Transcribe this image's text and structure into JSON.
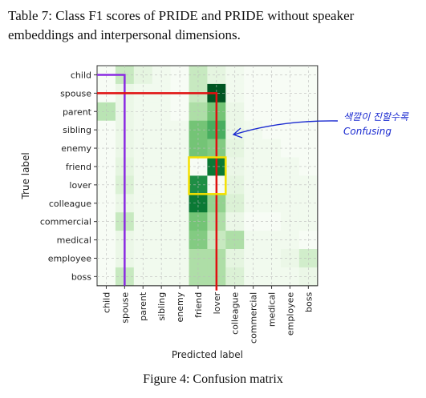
{
  "table_caption": "Table 7: Class F1 scores of PRIDE and PRIDE without speaker embeddings and interpersonal dimensions.",
  "figure_caption": "Figure 4: Confusion matrix",
  "chart_data": {
    "type": "heatmap",
    "colormap": "Greens",
    "xlabel": "Predicted label",
    "ylabel": "True label",
    "grid": true,
    "labels": [
      "child",
      "spouse",
      "parent",
      "sibling",
      "enemy",
      "friend",
      "lover",
      "colleague",
      "commercial",
      "medical",
      "employee",
      "boss"
    ],
    "values": [
      [
        0.0,
        0.3,
        0.15,
        0.05,
        0.0,
        0.3,
        0.15,
        0.05,
        0.0,
        0.0,
        0.0,
        0.0
      ],
      [
        0.0,
        0.1,
        0.05,
        0.05,
        0.0,
        0.3,
        0.95,
        0.05,
        0.0,
        0.0,
        0.0,
        0.0
      ],
      [
        0.35,
        0.1,
        0.05,
        0.05,
        0.0,
        0.4,
        0.6,
        0.1,
        0.0,
        0.0,
        0.0,
        0.0
      ],
      [
        0.0,
        0.1,
        0.05,
        0.05,
        0.05,
        0.6,
        0.7,
        0.1,
        0.05,
        0.0,
        0.0,
        0.0
      ],
      [
        0.0,
        0.1,
        0.05,
        0.05,
        0.05,
        0.6,
        0.55,
        0.15,
        0.05,
        0.05,
        0.0,
        0.0
      ],
      [
        0.0,
        0.15,
        0.05,
        0.05,
        0.05,
        0.0,
        0.85,
        0.1,
        0.05,
        0.05,
        0.05,
        0.0
      ],
      [
        0.0,
        0.2,
        0.05,
        0.05,
        0.05,
        0.8,
        0.0,
        0.15,
        0.05,
        0.05,
        0.05,
        0.05
      ],
      [
        0.0,
        0.1,
        0.05,
        0.05,
        0.05,
        0.85,
        0.5,
        0.2,
        0.05,
        0.05,
        0.05,
        0.05
      ],
      [
        0.0,
        0.3,
        0.05,
        0.05,
        0.05,
        0.6,
        0.4,
        0.1,
        0.0,
        0.0,
        0.05,
        0.05
      ],
      [
        0.0,
        0.1,
        0.05,
        0.05,
        0.05,
        0.55,
        0.3,
        0.4,
        0.05,
        0.05,
        0.05,
        0.0
      ],
      [
        0.0,
        0.1,
        0.05,
        0.05,
        0.05,
        0.4,
        0.4,
        0.15,
        0.05,
        0.05,
        0.1,
        0.25
      ],
      [
        0.0,
        0.3,
        0.05,
        0.05,
        0.05,
        0.4,
        0.4,
        0.2,
        0.05,
        0.05,
        0.05,
        0.1
      ]
    ],
    "annotations": {
      "handwritten_note": [
        "색깔이 진할수록",
        "Confusing"
      ],
      "note_color": "#1a2ad0",
      "purple_line_color": "#8a2be2",
      "red_line_color": "#e01010",
      "yellow_box_color": "#f5e000",
      "highlight_rows": [
        "friend",
        "lover"
      ],
      "highlight_cols": [
        "friend",
        "lover"
      ]
    }
  }
}
